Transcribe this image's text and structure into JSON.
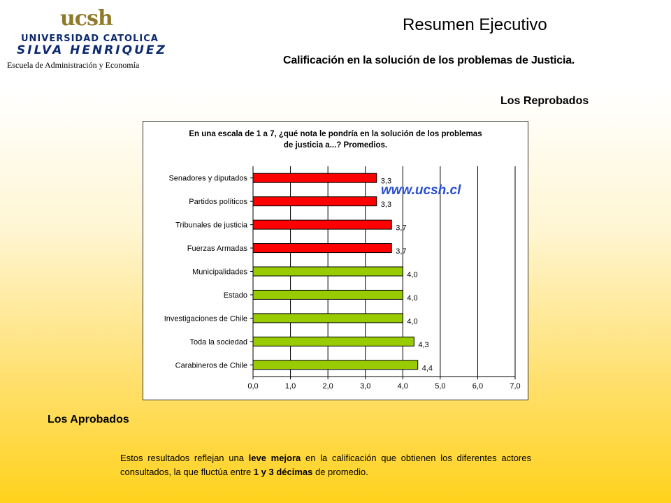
{
  "header": {
    "logo_mark": "ucsh",
    "logo_line1": "UNIVERSIDAD CATOLICA",
    "logo_line2": "SILVA HENRIQUEZ",
    "logo_line3": "Escuela de Administración y Economía",
    "title": "Resumen Ejecutivo",
    "subtitle": "Calificación en la solución de los problemas de Justicia."
  },
  "labels": {
    "reprobados": "Los Reprobados",
    "aprobados": "Los Aprobados",
    "watermark": "www.ucsh.cl"
  },
  "summary": {
    "part1": "Estos resultados reflejan una ",
    "bold1": "leve mejora",
    "part2": " en la calificación que obtienen los diferentes actores consultados, la que fluctúa entre ",
    "bold2": "1 y 3 décimas",
    "part3": " de promedio."
  },
  "colors": {
    "failed": "#ff0000",
    "passed": "#99cc00",
    "bar_outline": "#000000"
  },
  "chart_data": {
    "type": "bar",
    "orientation": "horizontal",
    "title_line1": "En una escala de 1 a 7, ¿qué nota le pondría en la solución de los problemas",
    "title_line2": "de justicia a...? Promedios.",
    "categories": [
      "Senadores y diputados",
      "Partidos políticos",
      "Tribunales de justicia",
      "Fuerzas Armadas",
      "Municipalidades",
      "Estado",
      "Investigaciones de Chile",
      "Toda la sociedad",
      "Carabineros de Chile"
    ],
    "values": [
      3.3,
      3.3,
      3.7,
      3.7,
      4.0,
      4.0,
      4.0,
      4.3,
      4.4
    ],
    "value_labels": [
      "3,3",
      "3,3",
      "3,7",
      "3,7",
      "4,0",
      "4,0",
      "4,0",
      "4,3",
      "4,4"
    ],
    "bar_colors": [
      "#ff0000",
      "#ff0000",
      "#ff0000",
      "#ff0000",
      "#99cc00",
      "#99cc00",
      "#99cc00",
      "#99cc00",
      "#99cc00"
    ],
    "xlim": [
      0,
      7
    ],
    "ticks": [
      "0,0",
      "1,0",
      "2,0",
      "3,0",
      "4,0",
      "5,0",
      "6,0",
      "7,0"
    ],
    "grid": true,
    "legend": "none"
  }
}
